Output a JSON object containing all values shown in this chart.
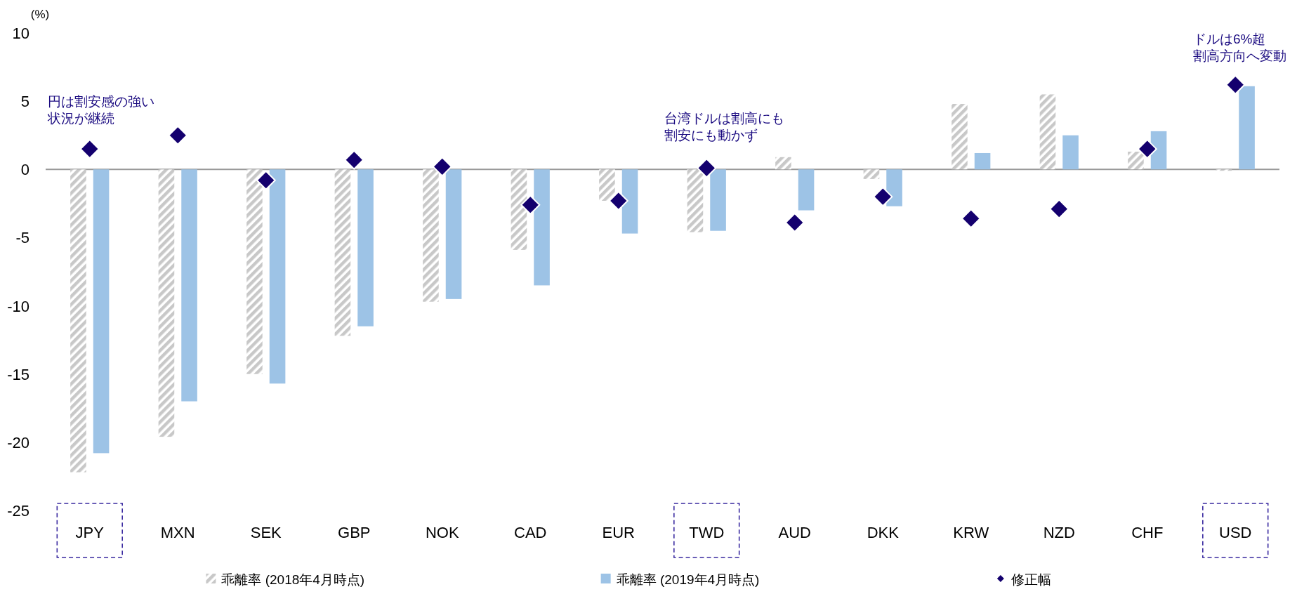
{
  "chart_data": {
    "type": "bar",
    "ylabel": "(%)",
    "categories": [
      "JPY",
      "MXN",
      "SEK",
      "GBP",
      "NOK",
      "CAD",
      "EUR",
      "TWD",
      "AUD",
      "DKK",
      "KRW",
      "NZD",
      "CHF",
      "USD"
    ],
    "series": [
      {
        "name": "乖離率 (2018年4月時点)",
        "color": "#c8c8c8",
        "values": [
          -22.2,
          -19.6,
          -15.0,
          -12.2,
          -9.7,
          -5.9,
          -2.3,
          -4.6,
          0.9,
          -0.7,
          4.8,
          5.5,
          1.3,
          -0.1
        ]
      },
      {
        "name": "乖離率 (2019年4月時点)",
        "color": "#9dc3e6",
        "values": [
          -20.8,
          -17.0,
          -15.7,
          -11.5,
          -9.5,
          -8.5,
          -4.7,
          -4.5,
          -3.0,
          -2.7,
          1.2,
          2.5,
          2.8,
          6.1
        ]
      },
      {
        "name": "修正幅",
        "type": "scatter",
        "color": "#14006e",
        "values": [
          1.5,
          2.5,
          -0.8,
          0.7,
          0.2,
          -2.6,
          -2.3,
          0.1,
          -3.9,
          -2.0,
          -3.6,
          -2.9,
          1.5,
          6.2
        ]
      }
    ],
    "marker": "diamond",
    "ylim": [
      -25,
      10
    ],
    "yticks": [
      -25,
      -20,
      -15,
      -10,
      -5,
      0,
      5,
      10
    ],
    "legend": "bottom",
    "annotations": [
      "円は割安感の強い状況が継続",
      "台湾ドルは割高にも割安にも動かず",
      "ドルは6%超割高方向へ変動"
    ]
  }
}
